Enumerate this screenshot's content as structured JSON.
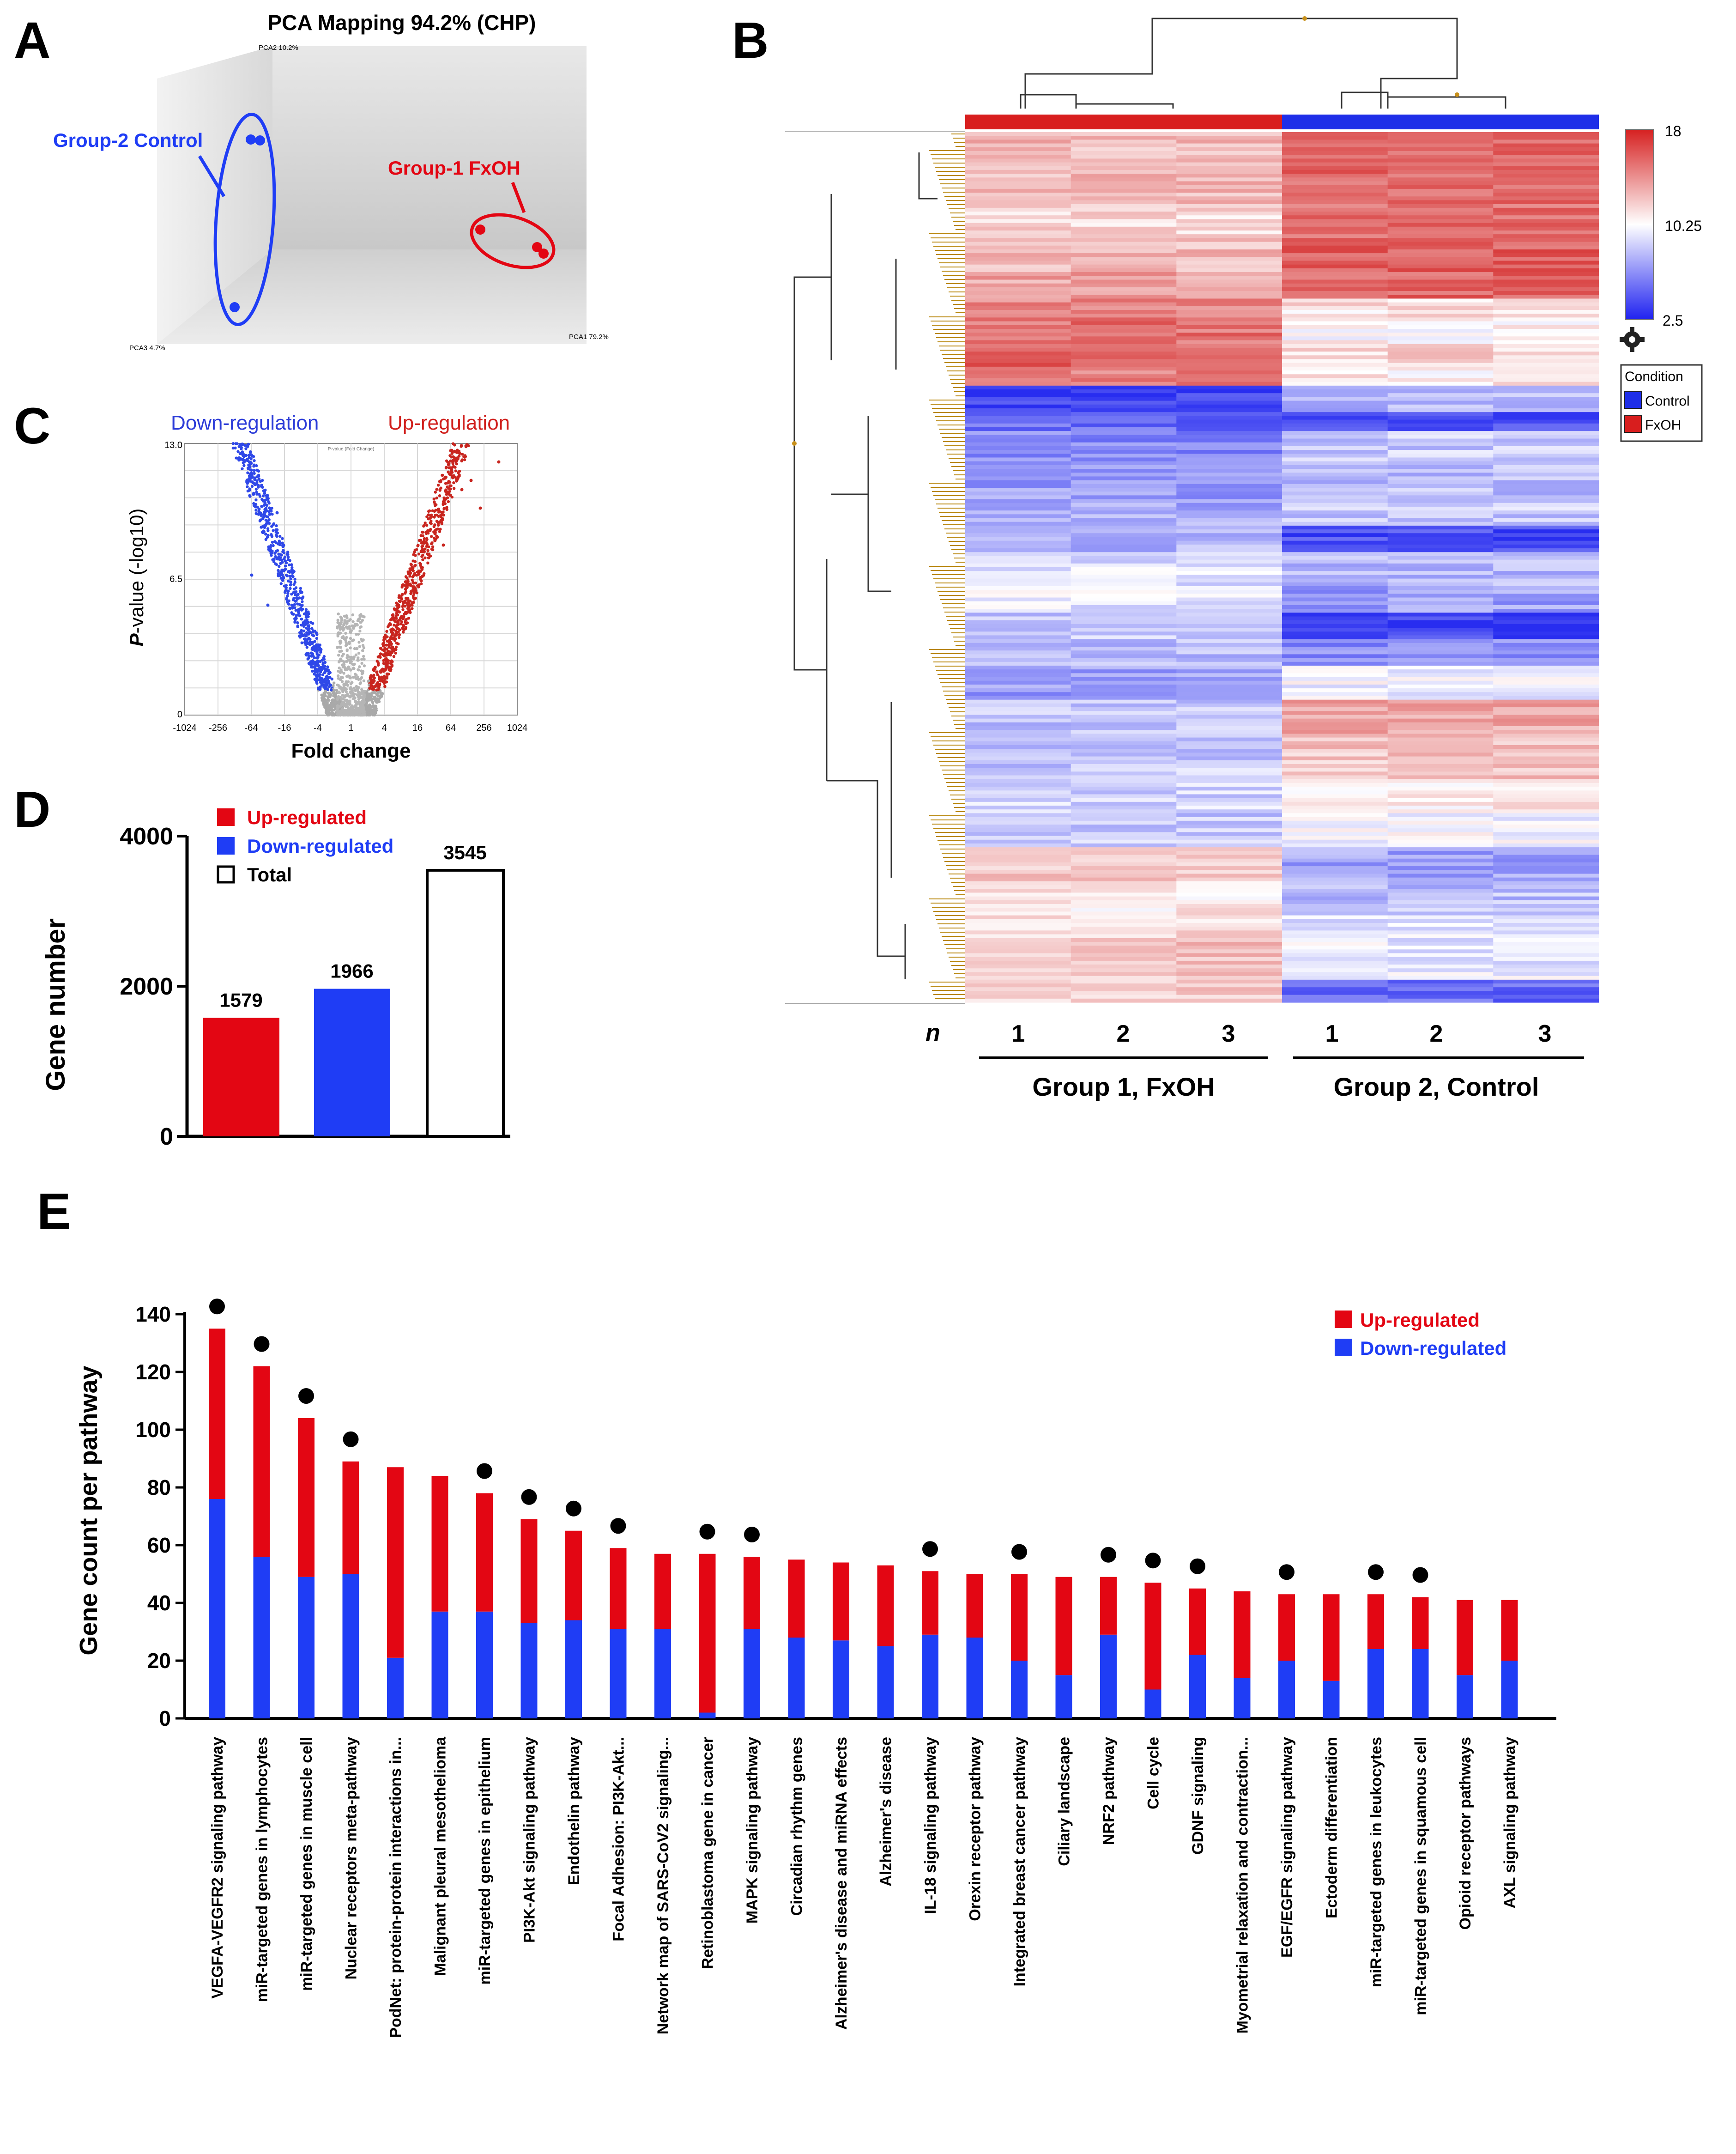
{
  "panels": {
    "a": "A",
    "b": "B",
    "c": "C",
    "d": "D",
    "e": "E"
  },
  "colors": {
    "up": "#e30613",
    "down": "#1f3df5",
    "black": "#000000",
    "grey": "#b0b0b0",
    "heat_red": "#c63a3a",
    "heat_blue": "#3b3ef0"
  },
  "pca": {
    "title": "PCA Mapping 94.2% (CHP)",
    "axis_pca2": "PCA2 10.2%",
    "axis_pca1": "PCA1 79.2%",
    "axis_pca3": "PCA3 4.7%",
    "group2_label": "Group-2 Control",
    "group1_label": "Group-1 FxOH"
  },
  "heatmap": {
    "scale_max": "18",
    "scale_mid": "10.25",
    "scale_min": "2.5",
    "legend_title": "Condition",
    "legend_control": "Control",
    "legend_fxoh": "FxOH",
    "n_label": "n",
    "replicates": [
      "1",
      "2",
      "3",
      "1",
      "2",
      "3"
    ],
    "group1": "Group 1, FxOH",
    "group2": "Group 2, Control"
  },
  "volcano": {
    "down_label": "Down-regulation",
    "up_label": "Up-regulation",
    "inner_title": "P-value (Fold Change)",
    "ylabel_p": "P",
    "ylabel_rest": "-value (-log10)",
    "xlabel": "Fold change",
    "yticks": [
      "13.0",
      "6.5",
      "0"
    ],
    "xticks": [
      "-1024",
      "-256",
      "-64",
      "-16",
      "-4",
      "1",
      "4",
      "16",
      "64",
      "256",
      "1024"
    ]
  },
  "chart_data": [
    {
      "type": "bar",
      "title": "",
      "ylabel": "Gene number",
      "xlabel": "",
      "ylim": [
        0,
        4000
      ],
      "yticks": [
        "0",
        "2000",
        "4000"
      ],
      "categories": [
        "Up-regulated",
        "Down-regulated",
        "Total"
      ],
      "values": [
        1579,
        1966,
        3545
      ],
      "value_labels": [
        "1579",
        "1966",
        "3545"
      ],
      "legend": [
        "Up-regulated",
        "Down-regulated",
        "Total"
      ]
    },
    {
      "type": "bar",
      "stacked": true,
      "ylabel": "Gene count per pathway",
      "ylim": [
        0,
        140
      ],
      "yticks": [
        "0",
        "20",
        "40",
        "60",
        "80",
        "100",
        "120",
        "140"
      ],
      "legend": [
        "Up-regulated",
        "Down-regulated"
      ],
      "categories": [
        "VEGFA-VEGFR2 signaling pathway",
        "miR-targeted genes in lymphocytes",
        "miR-targeted genes in muscle cell",
        "Nuclear receptors meta-pathway",
        "PodNet: protein-protein interactions in...",
        "Malignant pleural mesothelioma",
        "miR-targeted genes in epithelium",
        "PI3K-Akt signaling pathway",
        "Endothelin pathway",
        "Focal Adhesion: PI3K-Akt...",
        "Network map of SARS-CoV2 signaling...",
        "Retinoblastoma gene in cancer",
        "MAPK signaling pathway",
        "Circadian rhythm genes",
        "Alzheimer's disease and miRNA effects",
        "Alzheimer's disease",
        "IL-18 signaling pathway",
        "Orexin receptor pathway",
        "Integrated breast cancer pathway",
        "Ciliary landscape",
        "NRF2 pathway",
        "Cell cycle",
        "GDNF signaling",
        "Myometrial relaxation and contraction...",
        "EGF/EGFR signaling pathway",
        "Ectoderm differentiation",
        "miR-targeted genes in leukocytes",
        "miR-targeted genes in squamous cell",
        "Opioid receptor pathways",
        "AXL signaling pathway"
      ],
      "series": [
        {
          "name": "Down-regulated",
          "values": [
            76,
            56,
            49,
            50,
            21,
            37,
            37,
            33,
            34,
            31,
            31,
            2,
            31,
            28,
            27,
            25,
            29,
            28,
            20,
            15,
            29,
            10,
            22,
            14,
            20,
            13,
            24,
            24,
            15,
            20
          ]
        },
        {
          "name": "Up-regulated",
          "values": [
            59,
            66,
            55,
            39,
            66,
            47,
            41,
            36,
            31,
            28,
            26,
            55,
            25,
            27,
            27,
            28,
            22,
            22,
            30,
            34,
            20,
            37,
            23,
            30,
            23,
            30,
            19,
            18,
            26,
            21
          ]
        }
      ],
      "significant": [
        true,
        true,
        true,
        true,
        false,
        false,
        true,
        true,
        true,
        true,
        false,
        true,
        true,
        false,
        false,
        false,
        true,
        false,
        true,
        false,
        true,
        true,
        true,
        false,
        true,
        false,
        true,
        true,
        false,
        false
      ]
    }
  ]
}
